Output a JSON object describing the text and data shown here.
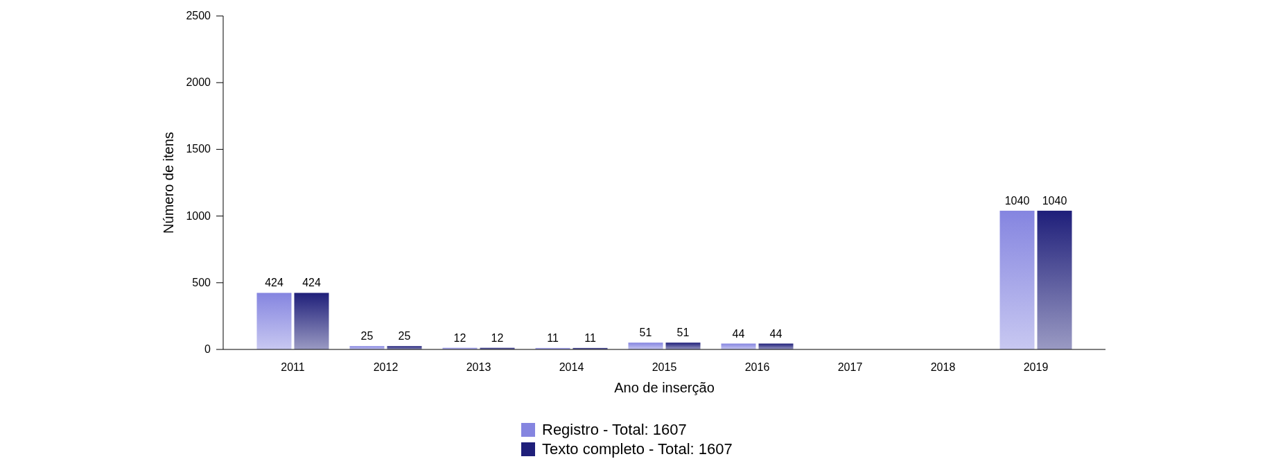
{
  "chart_data": {
    "type": "bar",
    "xlabel": "Ano de inserção",
    "ylabel": "Número de itens",
    "categories": [
      "2011",
      "2012",
      "2013",
      "2014",
      "2015",
      "2016",
      "2017",
      "2018",
      "2019"
    ],
    "series": [
      {
        "name": "Registro - Total: 1607",
        "color": "#8585e0",
        "values": [
          424,
          25,
          12,
          11,
          51,
          44,
          0,
          0,
          1040
        ],
        "value_labels": [
          "424",
          "25",
          "12",
          "11",
          "51",
          "44",
          null,
          null,
          "1040"
        ]
      },
      {
        "name": "Texto completo - Total: 1607",
        "color": "#1f1f7a",
        "values": [
          424,
          25,
          12,
          11,
          51,
          44,
          0,
          0,
          1040
        ],
        "value_labels": [
          "424",
          "25",
          "12",
          "11",
          "51",
          "44",
          null,
          null,
          "1040"
        ]
      }
    ],
    "ylim": [
      0,
      2500
    ],
    "yticks": [
      0,
      500,
      1000,
      1500,
      2000,
      2500
    ],
    "grid": false,
    "legend": "bottom"
  }
}
